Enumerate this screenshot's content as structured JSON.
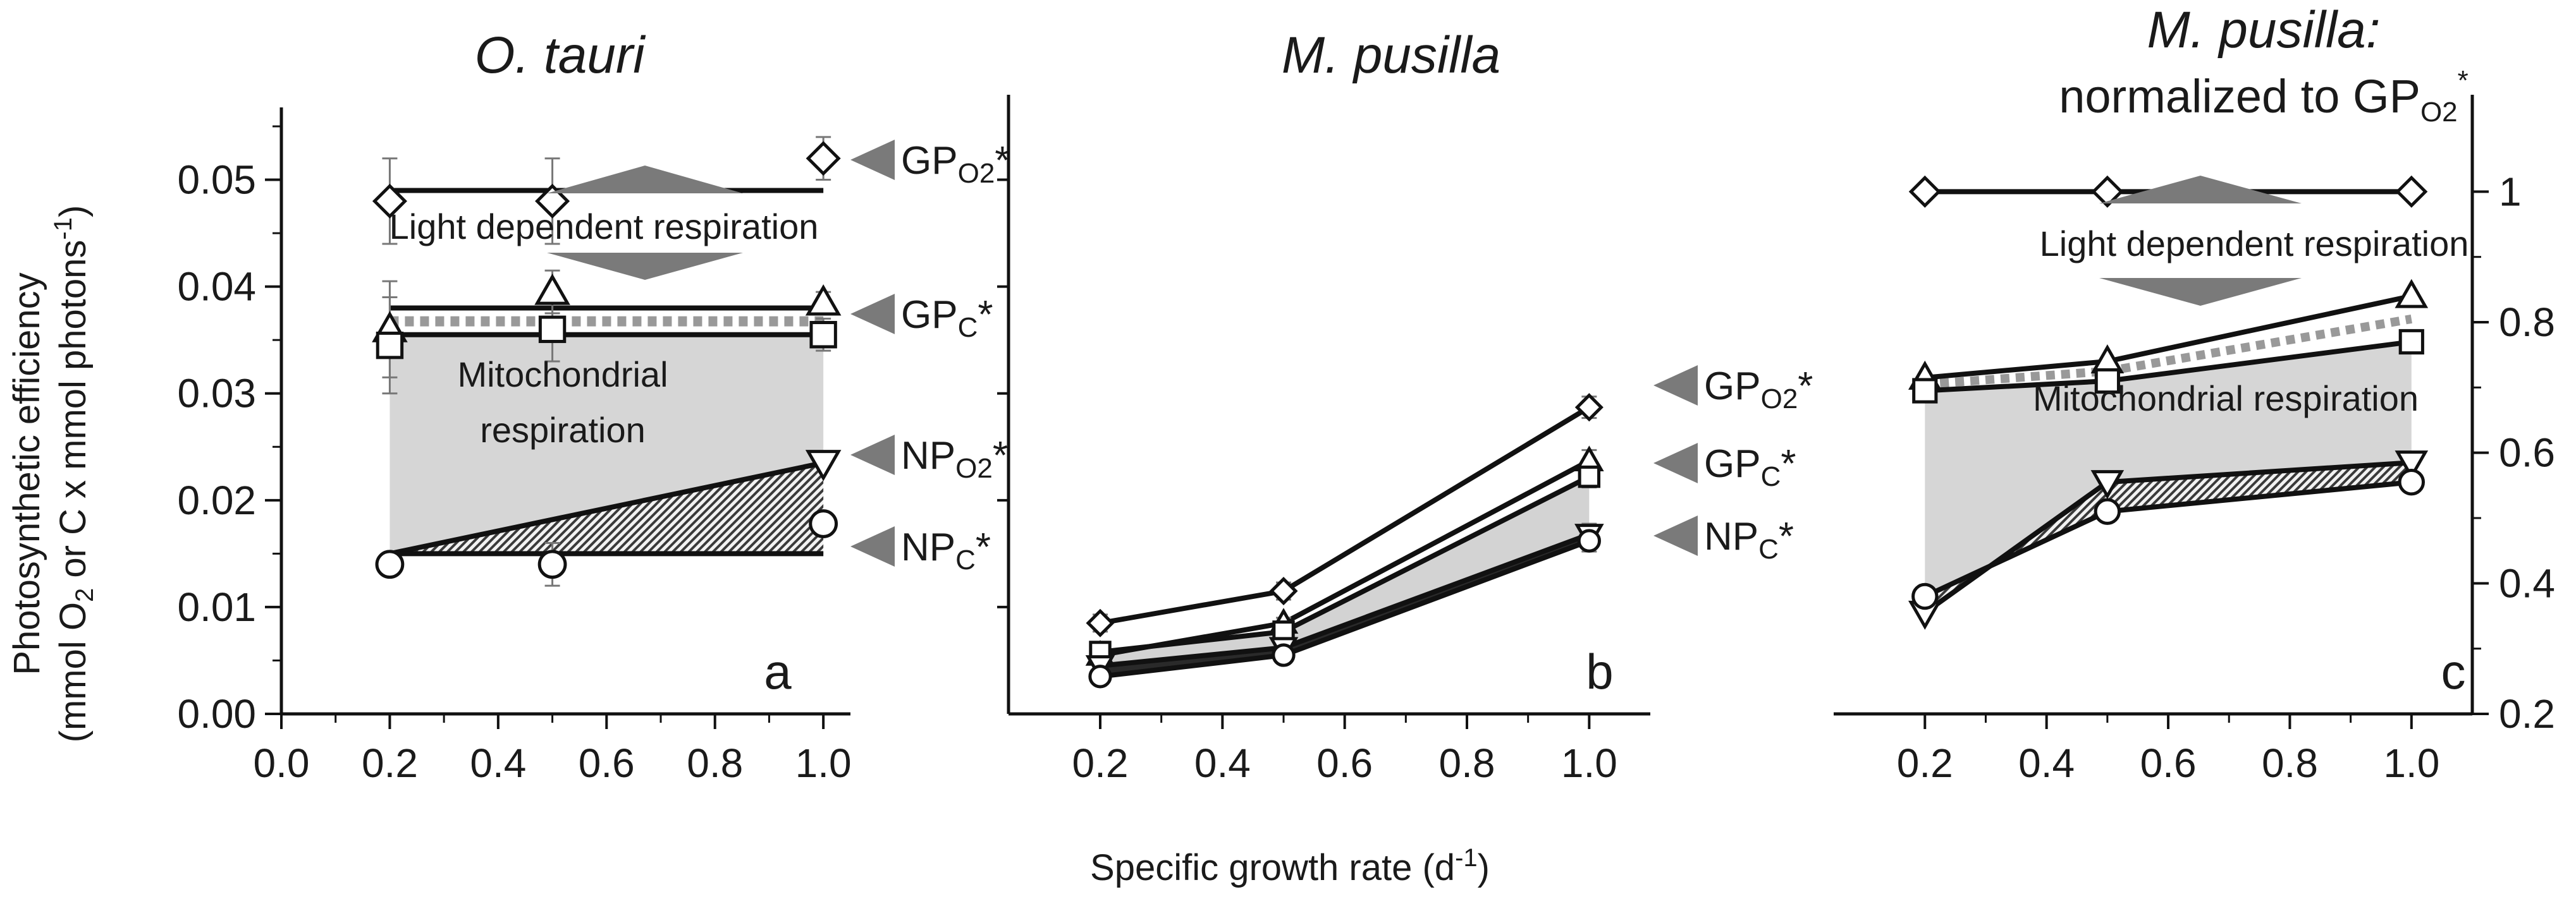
{
  "chart_data": [
    {
      "type": "line",
      "panel": "a",
      "title": "O. tauri",
      "panel_label": "a",
      "ylabel": "Photosynthetic efficiency",
      "ylabel_line2": {
        "main": "(mmol O",
        "sub1": "2",
        "mid": " or C x mmol photons",
        "sup": "-1",
        "end": ")"
      },
      "x_ticks": [
        "0.0",
        "0.2",
        "0.4",
        "0.6",
        "0.8",
        "1.0"
      ],
      "y_ticks": [
        "0.00",
        "0.01",
        "0.02",
        "0.03",
        "0.04",
        "0.05"
      ],
      "xlim": [
        0.0,
        1.05
      ],
      "ylim": [
        0.0,
        0.055
      ],
      "series": [
        {
          "name": "GPO2*",
          "marker": "diamond",
          "points": [
            [
              0.2,
              0.048
            ],
            [
              0.5,
              0.048
            ],
            [
              1.0,
              0.052
            ]
          ],
          "errors": [
            0.004,
            0.004,
            0.002
          ],
          "fit": [
            [
              0.2,
              0.049
            ],
            [
              1.0,
              0.049
            ]
          ]
        },
        {
          "name": "GPC*",
          "marker": "triangle-up",
          "points": [
            [
              0.2,
              0.036
            ],
            [
              0.5,
              0.0395
            ],
            [
              1.0,
              0.0385
            ]
          ],
          "errors": [
            0.0045,
            0.002,
            0.001
          ],
          "fit": [
            [
              0.2,
              0.038
            ],
            [
              1.0,
              0.038
            ]
          ]
        },
        {
          "name": "GPC*",
          "marker": "square",
          "points": [
            [
              0.2,
              0.0345
            ],
            [
              0.5,
              0.036
            ],
            [
              1.0,
              0.0355
            ]
          ],
          "errors": [
            0.0045,
            0.003,
            0.0015
          ],
          "fit": [
            [
              0.2,
              0.0355
            ],
            [
              1.0,
              0.0355
            ]
          ]
        },
        {
          "name": "NPO2*",
          "marker": "triangle-down",
          "points": [
            [
              1.0,
              0.0235
            ]
          ],
          "errors": [
            0
          ],
          "fit": [
            [
              0.2,
              0.015
            ],
            [
              1.0,
              0.0235
            ]
          ]
        },
        {
          "name": "NPC*",
          "marker": "circle",
          "points": [
            [
              0.2,
              0.014
            ],
            [
              0.5,
              0.014
            ],
            [
              1.0,
              0.0178
            ]
          ],
          "errors": [
            0.001,
            0.002,
            0.001
          ],
          "fit": [
            [
              0.2,
              0.015
            ],
            [
              1.0,
              0.015
            ]
          ]
        }
      ],
      "legend": [
        {
          "key": "gpo2",
          "main": "GP",
          "sub": "O2",
          "end": "*"
        },
        {
          "key": "gpc",
          "main": "GP",
          "sub": "C",
          "end": "*"
        },
        {
          "key": "npo2",
          "main": "NP",
          "sub": "O2",
          "end": "*"
        },
        {
          "key": "npc",
          "main": "NP",
          "sub": "C",
          "end": "*"
        }
      ],
      "annotations": [
        "Light dependent respiration",
        "Mitochondrial",
        "respiration"
      ]
    },
    {
      "type": "line",
      "panel": "b",
      "title": "M. pusilla",
      "panel_label": "b",
      "x_ticks": [
        "0.2",
        "0.4",
        "0.6",
        "0.8",
        "1.0"
      ],
      "xlim": [
        0.05,
        1.1
      ],
      "ylim": [
        0.0,
        0.055
      ],
      "series": [
        {
          "name": "GPO2*",
          "marker": "diamond",
          "points": [
            [
              0.2,
              0.0085
            ],
            [
              0.5,
              0.0115
            ],
            [
              1.0,
              0.0287
            ]
          ],
          "errors": [
            0.0008,
            0.0008,
            0.001
          ]
        },
        {
          "name": "GPC*",
          "marker": "triangle-up",
          "points": [
            [
              0.2,
              0.0055
            ],
            [
              0.5,
              0.0085
            ],
            [
              1.0,
              0.0237
            ]
          ],
          "errors": [
            0.0005,
            0.0005,
            0.001
          ]
        },
        {
          "name": "GPC*",
          "marker": "square",
          "points": [
            [
              0.2,
              0.0058
            ],
            [
              0.5,
              0.0077
            ],
            [
              1.0,
              0.0222
            ]
          ],
          "errors": [
            0.0005,
            0.0005,
            0.001
          ]
        },
        {
          "name": "NPO2*",
          "marker": "triangle-down",
          "points": [
            [
              0.2,
              0.0045
            ],
            [
              0.5,
              0.0062
            ],
            [
              1.0,
              0.0168
            ]
          ],
          "errors": [
            0.0005,
            0.0005,
            0.001
          ]
        },
        {
          "name": "NPC*",
          "marker": "circle",
          "points": [
            [
              0.2,
              0.0035
            ],
            [
              0.5,
              0.0055
            ],
            [
              1.0,
              0.0162
            ]
          ],
          "errors": [
            0.0005,
            0.0005,
            0.001
          ]
        }
      ],
      "legend": [
        {
          "key": "gpo2",
          "main": "GP",
          "sub": "O2",
          "end": "*"
        },
        {
          "key": "gpc",
          "main": "GP",
          "sub": "C",
          "end": "*"
        },
        {
          "key": "npc",
          "main": "NP",
          "sub": "C",
          "end": "*"
        }
      ],
      "xlabel": {
        "main": "Specific growth rate (d",
        "sup": "-1",
        "end": ")"
      }
    },
    {
      "type": "line",
      "panel": "c",
      "title": "M. pusilla:",
      "title_line2": {
        "main": "normalized to GP",
        "sub": "O2",
        "sup": "*"
      },
      "panel_label": "c",
      "x_ticks": [
        "0.2",
        "0.4",
        "0.6",
        "0.8",
        "1.0"
      ],
      "y_ticks_right": [
        "0.2",
        "0.4",
        "0.6",
        "0.8",
        "1"
      ],
      "xlim": [
        0.05,
        1.1
      ],
      "ylim": [
        0.2,
        1.1
      ],
      "series": [
        {
          "name": "GPO2*",
          "marker": "diamond",
          "points": [
            [
              0.2,
              1.0
            ],
            [
              0.5,
              1.0
            ],
            [
              1.0,
              1.0
            ]
          ]
        },
        {
          "name": "GPC*",
          "marker": "triangle-up",
          "points": [
            [
              0.2,
              0.715
            ],
            [
              0.5,
              0.74
            ],
            [
              1.0,
              0.84
            ]
          ]
        },
        {
          "name": "GPC*",
          "marker": "square",
          "points": [
            [
              0.2,
              0.695
            ],
            [
              0.5,
              0.71
            ],
            [
              1.0,
              0.77
            ]
          ]
        },
        {
          "name": "NPO2*",
          "marker": "triangle-down",
          "points": [
            [
              0.2,
              0.355
            ],
            [
              0.5,
              0.555
            ],
            [
              1.0,
              0.585
            ]
          ]
        },
        {
          "name": "NPC*",
          "marker": "circle",
          "points": [
            [
              0.2,
              0.38
            ],
            [
              0.5,
              0.51
            ],
            [
              1.0,
              0.555
            ]
          ]
        }
      ],
      "annotations": [
        "Light dependent respiration",
        "Mitochondrial respiration"
      ]
    }
  ]
}
